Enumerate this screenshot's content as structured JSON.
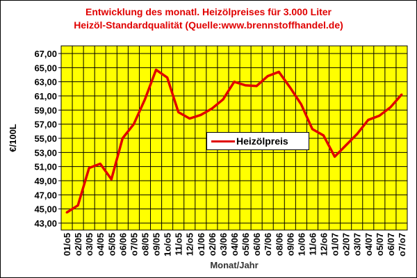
{
  "chart_data": {
    "type": "line",
    "title": "Entwicklung des monatl. Heizölpreises für 3.000 Liter",
    "subtitle": "Heizöl-Standardqualität (Quelle:www.brennstoffhandel.de)",
    "xlabel": "Monat/Jahr",
    "ylabel": "€/100L",
    "ylim": [
      43,
      67
    ],
    "yticks": [
      "43,00",
      "45,00",
      "47,00",
      "49,00",
      "51,00",
      "53,00",
      "55,00",
      "57,00",
      "59,00",
      "61,00",
      "63,00",
      "65,00",
      "67,00"
    ],
    "grid": true,
    "legend_position": "center-right",
    "background_color": "#ffff00",
    "line_color": "#e00000",
    "categories": [
      "01/o5",
      "o2/05",
      "o3/05",
      "o4/05",
      "o5/05",
      "o6/06",
      "o7/05",
      "o8/05",
      "o9/05",
      "1o/o5",
      "11/o5",
      "12/o5",
      "o1/06",
      "o2/06",
      "o3/06",
      "o4/06",
      "o5/06",
      "o6/06",
      "o7/06",
      "o8/06",
      "o9/06",
      "1o/06",
      "11/o6",
      "12/o6",
      "o1/07",
      "o2/07",
      "o3/07",
      "o4/07",
      "o5/07",
      "o6/07",
      "o7/o7"
    ],
    "series": [
      {
        "name": "Heizölpreis",
        "values": [
          44.5,
          45.5,
          50.8,
          51.4,
          49.2,
          55.0,
          57.0,
          60.5,
          64.7,
          63.6,
          58.7,
          57.8,
          58.3,
          59.2,
          60.5,
          63.0,
          62.5,
          62.4,
          63.8,
          64.4,
          62.2,
          59.8,
          56.3,
          55.4,
          52.4,
          54.0,
          55.6,
          57.6,
          58.2,
          59.4,
          61.2
        ]
      }
    ]
  }
}
